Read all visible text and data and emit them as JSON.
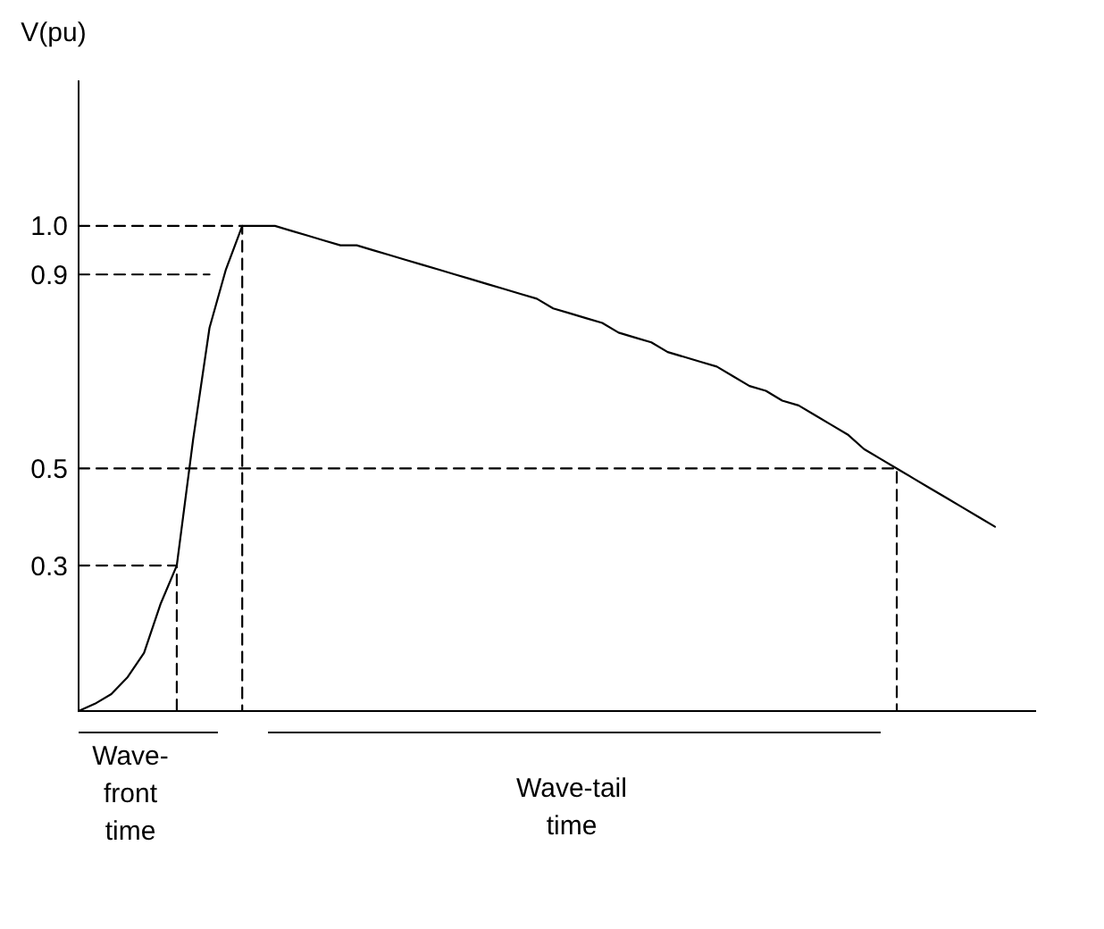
{
  "chart_data": {
    "type": "line",
    "ylabel": "V(pu)",
    "ylim": [
      0,
      1.3
    ],
    "yticks": [
      0.3,
      0.5,
      0.9,
      {
        "value": 1,
        "label": "1.0"
      }
    ],
    "tick_labels": "y",
    "categories": [
      null,
      null,
      null,
      null,
      null,
      null,
      null,
      null,
      null,
      null,
      null,
      null,
      null,
      null,
      null,
      null,
      null,
      null,
      null,
      null,
      null,
      null,
      null,
      null,
      null,
      null,
      null,
      null,
      null,
      null,
      null,
      null,
      null,
      null,
      null,
      null,
      null,
      null,
      null,
      null,
      null,
      null,
      null,
      null,
      null,
      null,
      null,
      null,
      null,
      null,
      null,
      null,
      null,
      null,
      null,
      null,
      null,
      null,
      null
    ],
    "series": [
      {
        "color": "#000000",
        "line_style": "solid",
        "values": [
          0,
          0.015,
          0.035,
          0.07,
          0.12,
          0.22,
          0.3,
          0.56,
          0.79,
          0.91,
          1,
          1,
          1,
          0.99,
          0.98,
          0.97,
          0.96,
          0.96,
          0.95,
          0.94,
          0.93,
          0.92,
          0.91,
          0.9,
          0.89,
          0.88,
          0.87,
          0.86,
          0.85,
          0.83,
          0.82,
          0.81,
          0.8,
          0.78,
          0.77,
          0.76,
          0.74,
          0.73,
          0.72,
          0.71,
          0.69,
          0.67,
          0.66,
          0.64,
          0.63,
          0.61,
          0.59,
          0.57,
          0.54,
          0.52,
          0.5,
          0.48,
          0.46,
          0.44,
          0.42,
          0.4,
          0.38,
          null,
          null
        ]
      },
      {
        "type": "step",
        "color": "#000000",
        "line_style": "dashed",
        "values": [
          1,
          1,
          1,
          1,
          1,
          1,
          1,
          1,
          1,
          1,
          0,
          null,
          null,
          null,
          null,
          null,
          null,
          null,
          null,
          null,
          null,
          null,
          null,
          null,
          null,
          null,
          null,
          null,
          null,
          null,
          null,
          null,
          null,
          null,
          null,
          null,
          null,
          null,
          null,
          null,
          null,
          null,
          null,
          null,
          null,
          null,
          null,
          null,
          null,
          null,
          null,
          null,
          null,
          null,
          null,
          null,
          null,
          null,
          null
        ]
      },
      {
        "color": "#000000",
        "line_style": "dashed",
        "values": [
          0.9,
          0.9,
          0.9,
          0.9,
          0.9,
          0.9,
          0.9,
          0.9,
          0.9,
          null,
          null,
          null,
          null,
          null,
          null,
          null,
          null,
          null,
          null,
          null,
          null,
          null,
          null,
          null,
          null,
          null,
          null,
          null,
          null,
          null,
          null,
          null,
          null,
          null,
          null,
          null,
          null,
          null,
          null,
          null,
          null,
          null,
          null,
          null,
          null,
          null,
          null,
          null,
          null,
          null,
          null,
          null,
          null,
          null,
          null,
          null,
          null,
          null,
          null
        ]
      },
      {
        "type": "step",
        "color": "#000000",
        "line_style": "dashed",
        "values": [
          0.5,
          0.5,
          0.5,
          0.5,
          0.5,
          0.5,
          0.5,
          0.5,
          0.5,
          0.5,
          0.5,
          0.5,
          0.5,
          0.5,
          0.5,
          0.5,
          0.5,
          0.5,
          0.5,
          0.5,
          0.5,
          0.5,
          0.5,
          0.5,
          0.5,
          0.5,
          0.5,
          0.5,
          0.5,
          0.5,
          0.5,
          0.5,
          0.5,
          0.5,
          0.5,
          0.5,
          0.5,
          0.5,
          0.5,
          0.5,
          0.5,
          0.5,
          0.5,
          0.5,
          0.5,
          0.5,
          0.5,
          0.5,
          0.5,
          0.5,
          0,
          null,
          null,
          null,
          null,
          null,
          null,
          null,
          null
        ]
      },
      {
        "type": "step",
        "color": "#000000",
        "line_style": "dashed",
        "values": [
          0.3,
          0.3,
          0.3,
          0.3,
          0.3,
          0.3,
          0,
          null,
          null,
          null,
          null,
          null,
          null,
          null,
          null,
          null,
          null,
          null,
          null,
          null,
          null,
          null,
          null,
          null,
          null,
          null,
          null,
          null,
          null,
          null,
          null,
          null,
          null,
          null,
          null,
          null,
          null,
          null,
          null,
          null,
          null,
          null,
          null,
          null,
          null,
          null,
          null,
          null,
          null,
          null,
          null,
          null,
          null,
          null,
          null,
          null,
          null,
          null,
          null
        ]
      }
    ],
    "annotations": [
      "Wave-front time",
      "Wave-tail time"
    ]
  }
}
